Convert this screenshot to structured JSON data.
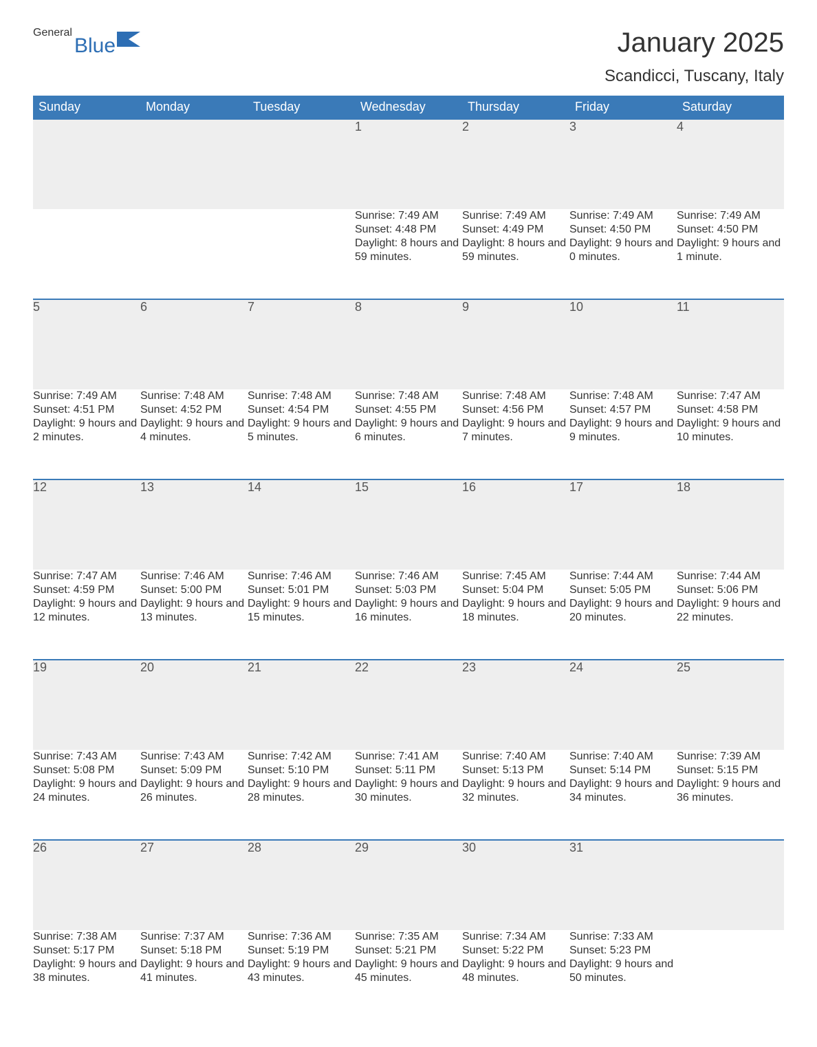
{
  "logo": {
    "word1": "General",
    "word2": "Blue",
    "flag_color": "#2d6eb4"
  },
  "title": "January 2025",
  "location": "Scandicci, Tuscany, Italy",
  "colors": {
    "header_bg": "#3a7ab8",
    "header_text": "#ffffff",
    "row_border": "#3a7ab8",
    "daynum_bg": "#eeeeee",
    "text": "#333333",
    "logo_blue": "#2d6eb4",
    "logo_gray": "#555555"
  },
  "day_headers": [
    "Sunday",
    "Monday",
    "Tuesday",
    "Wednesday",
    "Thursday",
    "Friday",
    "Saturday"
  ],
  "weeks": [
    [
      null,
      null,
      null,
      {
        "n": "1",
        "sr": "7:49 AM",
        "ss": "4:48 PM",
        "dl": "8 hours and 59 minutes."
      },
      {
        "n": "2",
        "sr": "7:49 AM",
        "ss": "4:49 PM",
        "dl": "8 hours and 59 minutes."
      },
      {
        "n": "3",
        "sr": "7:49 AM",
        "ss": "4:50 PM",
        "dl": "9 hours and 0 minutes."
      },
      {
        "n": "4",
        "sr": "7:49 AM",
        "ss": "4:50 PM",
        "dl": "9 hours and 1 minute."
      }
    ],
    [
      {
        "n": "5",
        "sr": "7:49 AM",
        "ss": "4:51 PM",
        "dl": "9 hours and 2 minutes."
      },
      {
        "n": "6",
        "sr": "7:48 AM",
        "ss": "4:52 PM",
        "dl": "9 hours and 4 minutes."
      },
      {
        "n": "7",
        "sr": "7:48 AM",
        "ss": "4:54 PM",
        "dl": "9 hours and 5 minutes."
      },
      {
        "n": "8",
        "sr": "7:48 AM",
        "ss": "4:55 PM",
        "dl": "9 hours and 6 minutes."
      },
      {
        "n": "9",
        "sr": "7:48 AM",
        "ss": "4:56 PM",
        "dl": "9 hours and 7 minutes."
      },
      {
        "n": "10",
        "sr": "7:48 AM",
        "ss": "4:57 PM",
        "dl": "9 hours and 9 minutes."
      },
      {
        "n": "11",
        "sr": "7:47 AM",
        "ss": "4:58 PM",
        "dl": "9 hours and 10 minutes."
      }
    ],
    [
      {
        "n": "12",
        "sr": "7:47 AM",
        "ss": "4:59 PM",
        "dl": "9 hours and 12 minutes."
      },
      {
        "n": "13",
        "sr": "7:46 AM",
        "ss": "5:00 PM",
        "dl": "9 hours and 13 minutes."
      },
      {
        "n": "14",
        "sr": "7:46 AM",
        "ss": "5:01 PM",
        "dl": "9 hours and 15 minutes."
      },
      {
        "n": "15",
        "sr": "7:46 AM",
        "ss": "5:03 PM",
        "dl": "9 hours and 16 minutes."
      },
      {
        "n": "16",
        "sr": "7:45 AM",
        "ss": "5:04 PM",
        "dl": "9 hours and 18 minutes."
      },
      {
        "n": "17",
        "sr": "7:44 AM",
        "ss": "5:05 PM",
        "dl": "9 hours and 20 minutes."
      },
      {
        "n": "18",
        "sr": "7:44 AM",
        "ss": "5:06 PM",
        "dl": "9 hours and 22 minutes."
      }
    ],
    [
      {
        "n": "19",
        "sr": "7:43 AM",
        "ss": "5:08 PM",
        "dl": "9 hours and 24 minutes."
      },
      {
        "n": "20",
        "sr": "7:43 AM",
        "ss": "5:09 PM",
        "dl": "9 hours and 26 minutes."
      },
      {
        "n": "21",
        "sr": "7:42 AM",
        "ss": "5:10 PM",
        "dl": "9 hours and 28 minutes."
      },
      {
        "n": "22",
        "sr": "7:41 AM",
        "ss": "5:11 PM",
        "dl": "9 hours and 30 minutes."
      },
      {
        "n": "23",
        "sr": "7:40 AM",
        "ss": "5:13 PM",
        "dl": "9 hours and 32 minutes."
      },
      {
        "n": "24",
        "sr": "7:40 AM",
        "ss": "5:14 PM",
        "dl": "9 hours and 34 minutes."
      },
      {
        "n": "25",
        "sr": "7:39 AM",
        "ss": "5:15 PM",
        "dl": "9 hours and 36 minutes."
      }
    ],
    [
      {
        "n": "26",
        "sr": "7:38 AM",
        "ss": "5:17 PM",
        "dl": "9 hours and 38 minutes."
      },
      {
        "n": "27",
        "sr": "7:37 AM",
        "ss": "5:18 PM",
        "dl": "9 hours and 41 minutes."
      },
      {
        "n": "28",
        "sr": "7:36 AM",
        "ss": "5:19 PM",
        "dl": "9 hours and 43 minutes."
      },
      {
        "n": "29",
        "sr": "7:35 AM",
        "ss": "5:21 PM",
        "dl": "9 hours and 45 minutes."
      },
      {
        "n": "30",
        "sr": "7:34 AM",
        "ss": "5:22 PM",
        "dl": "9 hours and 48 minutes."
      },
      {
        "n": "31",
        "sr": "7:33 AM",
        "ss": "5:23 PM",
        "dl": "9 hours and 50 minutes."
      },
      null
    ]
  ],
  "labels": {
    "sunrise": "Sunrise:",
    "sunset": "Sunset:",
    "daylight": "Daylight:"
  }
}
